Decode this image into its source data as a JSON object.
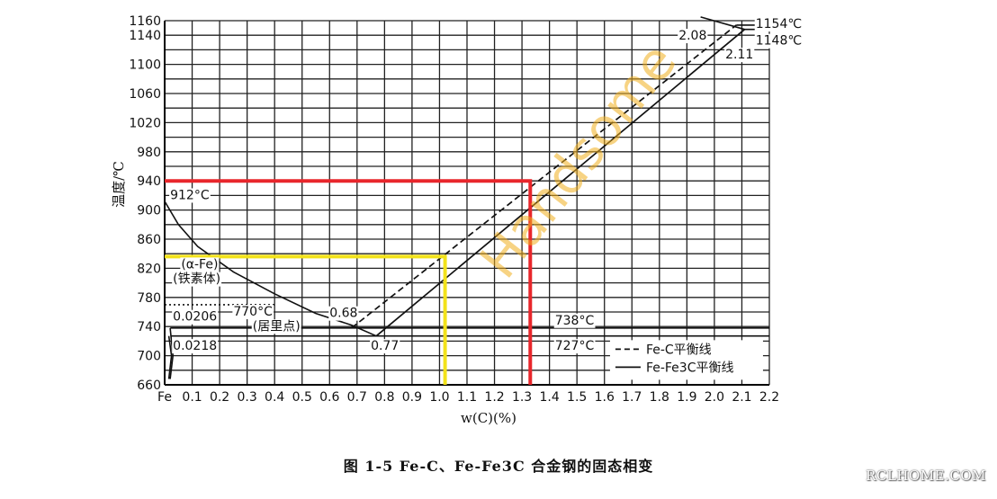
{
  "caption": "图 1-5   Fe-C、Fe-Fe3C 合金钢的固态相变",
  "watermark_brand": "RCLHOME.COM",
  "watermark_diagonal": "Handsome",
  "colors": {
    "red_guide": "#e8262b",
    "yellow_guide": "#f2e21a",
    "curve": "#111111",
    "grid": "#222222"
  },
  "chart_data": {
    "type": "line",
    "xlabel": "w(C)(%)",
    "ylabel": "温度/℃",
    "xlim": [
      0,
      2.2
    ],
    "ylim": [
      660,
      1160
    ],
    "grid": true,
    "legend_position": "bottom-right",
    "x_ticks": [
      {
        "value": 0.0,
        "label": "Fe"
      },
      {
        "value": 0.1,
        "label": "0.1"
      },
      {
        "value": 0.2,
        "label": "0.2"
      },
      {
        "value": 0.3,
        "label": "0.3"
      },
      {
        "value": 0.4,
        "label": "0.4"
      },
      {
        "value": 0.5,
        "label": "0.5"
      },
      {
        "value": 0.6,
        "label": "0.6"
      },
      {
        "value": 0.7,
        "label": "0.7"
      },
      {
        "value": 0.8,
        "label": "0.8"
      },
      {
        "value": 0.9,
        "label": "0.9"
      },
      {
        "value": 1.0,
        "label": "1.0"
      },
      {
        "value": 1.1,
        "label": "1.1"
      },
      {
        "value": 1.2,
        "label": "1.2"
      },
      {
        "value": 1.3,
        "label": "1.3"
      },
      {
        "value": 1.4,
        "label": "1.4"
      },
      {
        "value": 1.5,
        "label": "1.5"
      },
      {
        "value": 1.6,
        "label": "1.6"
      },
      {
        "value": 1.7,
        "label": "1.7"
      },
      {
        "value": 1.8,
        "label": "1.8"
      },
      {
        "value": 1.9,
        "label": "1.9"
      },
      {
        "value": 2.0,
        "label": "2.0"
      },
      {
        "value": 2.1,
        "label": "2.1"
      },
      {
        "value": 2.2,
        "label": "2.2"
      }
    ],
    "y_ticks": [
      660,
      700,
      740,
      780,
      820,
      860,
      900,
      940,
      980,
      1020,
      1060,
      1100,
      1140,
      1160
    ],
    "series": [
      {
        "name": "Fe-C平衡线",
        "style": "dashed",
        "points": [
          [
            0.68,
            738
          ],
          [
            2.08,
            1154
          ]
        ]
      },
      {
        "name": "Fe-Fe3C平衡线",
        "style": "solid",
        "points": [
          [
            0.77,
            727
          ],
          [
            2.11,
            1148
          ]
        ]
      }
    ],
    "other_lines": [
      {
        "style": "solid",
        "points": [
          [
            0,
            912
          ],
          [
            0.05,
            880
          ],
          [
            0.12,
            850
          ],
          [
            0.25,
            815
          ],
          [
            0.4,
            785
          ],
          [
            0.55,
            758
          ],
          [
            0.68,
            742
          ],
          [
            0.77,
            727
          ]
        ]
      },
      {
        "style": "solid",
        "points": [
          [
            0.0206,
            738
          ],
          [
            2.2,
            738
          ]
        ]
      },
      {
        "style": "solid",
        "points": [
          [
            0.0218,
            727
          ],
          [
            2.2,
            727
          ]
        ]
      },
      {
        "style": "solid",
        "points": [
          [
            0.02,
            738
          ],
          [
            0.03,
            700
          ],
          [
            0.02,
            668
          ]
        ]
      },
      {
        "style": "solid",
        "points": [
          [
            0.015,
            727
          ],
          [
            0.025,
            700
          ],
          [
            0.015,
            668
          ]
        ]
      },
      {
        "style": "dotted",
        "points": [
          [
            0,
            770
          ],
          [
            0.4,
            770
          ]
        ]
      },
      {
        "style": "solid",
        "points": [
          [
            2.11,
            1148
          ],
          [
            2.2,
            1148
          ]
        ]
      },
      {
        "style": "solid",
        "points": [
          [
            2.08,
            1154
          ],
          [
            2.2,
            1154
          ]
        ]
      },
      {
        "style": "solid",
        "points": [
          [
            1.95,
            1165
          ],
          [
            2.11,
            1148
          ]
        ]
      }
    ],
    "highlight_lines": [
      {
        "color": "red",
        "points": [
          [
            0,
            940
          ],
          [
            1.33,
            940
          ],
          [
            1.33,
            660
          ]
        ]
      },
      {
        "color": "yellow",
        "points": [
          [
            0,
            836
          ],
          [
            1.02,
            836
          ],
          [
            1.02,
            660
          ]
        ]
      }
    ],
    "annotations": [
      {
        "text": "912°C",
        "x": 0.02,
        "y": 915
      },
      {
        "text": "(α-Fe)",
        "x": 0.06,
        "y": 820
      },
      {
        "text": "(铁素体)",
        "x": 0.03,
        "y": 800
      },
      {
        "text": "0.0206",
        "x": 0.03,
        "y": 748
      },
      {
        "text": "0.0218",
        "x": 0.03,
        "y": 708
      },
      {
        "text": "770°C",
        "x": 0.25,
        "y": 755
      },
      {
        "text": "(居里点)",
        "x": 0.32,
        "y": 735
      },
      {
        "text": "0.68",
        "x": 0.6,
        "y": 753
      },
      {
        "text": "0.77",
        "x": 0.75,
        "y": 708
      },
      {
        "text": "738°C",
        "x": 1.42,
        "y": 743
      },
      {
        "text": "727°C",
        "x": 1.42,
        "y": 708
      },
      {
        "text": "2.08",
        "x": 1.87,
        "y": 1134
      },
      {
        "text": "2.11",
        "x": 2.04,
        "y": 1108
      },
      {
        "text": "1154℃",
        "x": 2.15,
        "y": 1150
      },
      {
        "text": "1148℃",
        "x": 2.15,
        "y": 1127
      }
    ],
    "legend": [
      {
        "style": "dashed",
        "label": "Fe-C平衡线"
      },
      {
        "style": "solid",
        "label": "Fe-Fe3C平衡线"
      }
    ]
  }
}
